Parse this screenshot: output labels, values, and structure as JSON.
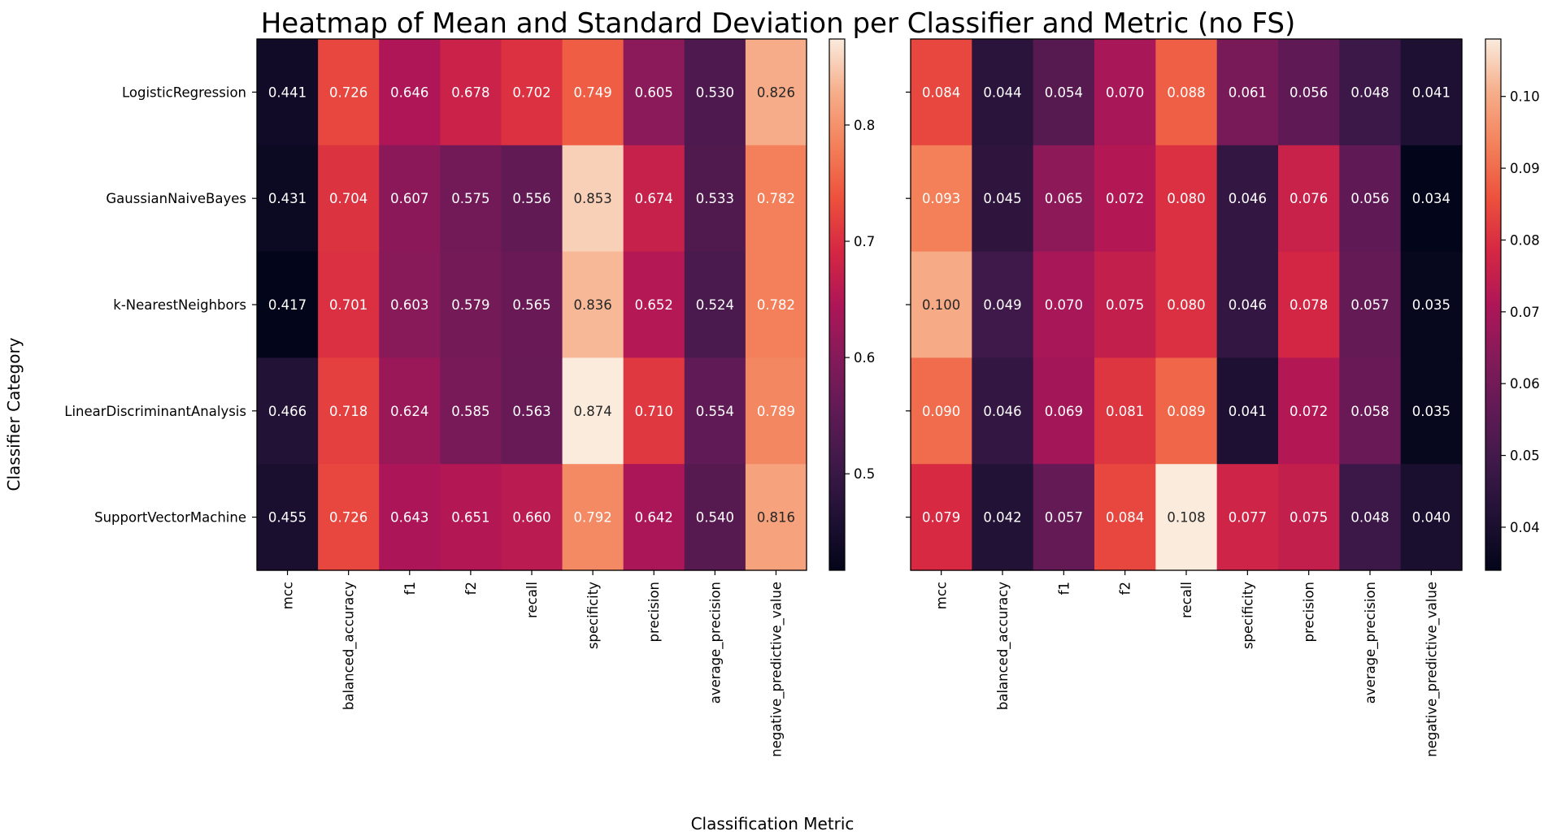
{
  "chart_data": {
    "type": "heatmap",
    "title": "Heatmap of Mean and Standard Deviation per Classifier and Metric (no FS)",
    "xlabel": "Classification Metric",
    "ylabel": "Classifier Category",
    "rows": [
      "LogisticRegression",
      "GaussianNaiveBayes",
      "k-NearestNeighbors",
      "LinearDiscriminantAnalysis",
      "SupportVectorMachine"
    ],
    "columns": [
      "mcc",
      "balanced_accuracy",
      "f1",
      "f2",
      "recall",
      "specificity",
      "precision",
      "average_precision",
      "negative_predictive_value"
    ],
    "colormap": "rocket",
    "panels": [
      {
        "name": "mean",
        "values": [
          [
            0.441,
            0.726,
            0.646,
            0.678,
            0.702,
            0.749,
            0.605,
            0.53,
            0.826
          ],
          [
            0.431,
            0.704,
            0.607,
            0.575,
            0.556,
            0.853,
            0.674,
            0.533,
            0.782
          ],
          [
            0.417,
            0.701,
            0.603,
            0.579,
            0.565,
            0.836,
            0.652,
            0.524,
            0.782
          ],
          [
            0.466,
            0.718,
            0.624,
            0.585,
            0.563,
            0.874,
            0.71,
            0.554,
            0.789
          ],
          [
            0.455,
            0.726,
            0.643,
            0.651,
            0.66,
            0.792,
            0.642,
            0.54,
            0.816
          ]
        ],
        "labels": [
          [
            "0.441",
            "0.726",
            "0.646",
            "0.678",
            "0.702",
            "0.749",
            "0.605",
            "0.530",
            "0.826"
          ],
          [
            "0.431",
            "0.704",
            "0.607",
            "0.575",
            "0.556",
            "0.853",
            "0.674",
            "0.533",
            "0.782"
          ],
          [
            "0.417",
            "0.701",
            "0.603",
            "0.579",
            "0.565",
            "0.836",
            "0.652",
            "0.524",
            "0.782"
          ],
          [
            "0.466",
            "0.718",
            "0.624",
            "0.585",
            "0.563",
            "0.874",
            "0.710",
            "0.554",
            "0.789"
          ],
          [
            "0.455",
            "0.726",
            "0.643",
            "0.651",
            "0.660",
            "0.792",
            "0.642",
            "0.540",
            "0.816"
          ]
        ],
        "vmin": 0.417,
        "vmax": 0.874,
        "colorbar_ticks": [
          0.5,
          0.6,
          0.7,
          0.8
        ],
        "colorbar_tick_labels": [
          "0.5",
          "0.6",
          "0.7",
          "0.8"
        ]
      },
      {
        "name": "std",
        "values": [
          [
            0.084,
            0.044,
            0.054,
            0.07,
            0.088,
            0.061,
            0.056,
            0.048,
            0.041
          ],
          [
            0.093,
            0.045,
            0.065,
            0.072,
            0.08,
            0.046,
            0.076,
            0.056,
            0.034
          ],
          [
            0.1,
            0.049,
            0.07,
            0.075,
            0.08,
            0.046,
            0.078,
            0.057,
            0.035
          ],
          [
            0.09,
            0.046,
            0.069,
            0.081,
            0.089,
            0.041,
            0.072,
            0.058,
            0.035
          ],
          [
            0.079,
            0.042,
            0.057,
            0.084,
            0.108,
            0.077,
            0.075,
            0.048,
            0.04
          ]
        ],
        "labels": [
          [
            "0.084",
            "0.044",
            "0.054",
            "0.070",
            "0.088",
            "0.061",
            "0.056",
            "0.048",
            "0.041"
          ],
          [
            "0.093",
            "0.045",
            "0.065",
            "0.072",
            "0.080",
            "0.046",
            "0.076",
            "0.056",
            "0.034"
          ],
          [
            "0.100",
            "0.049",
            "0.070",
            "0.075",
            "0.080",
            "0.046",
            "0.078",
            "0.057",
            "0.035"
          ],
          [
            "0.090",
            "0.046",
            "0.069",
            "0.081",
            "0.089",
            "0.041",
            "0.072",
            "0.058",
            "0.035"
          ],
          [
            "0.079",
            "0.042",
            "0.057",
            "0.084",
            "0.108",
            "0.077",
            "0.075",
            "0.048",
            "0.040"
          ]
        ],
        "vmin": 0.034,
        "vmax": 0.108,
        "colorbar_ticks": [
          0.04,
          0.05,
          0.06,
          0.07,
          0.08,
          0.09,
          0.1
        ],
        "colorbar_tick_labels": [
          "0.04",
          "0.05",
          "0.06",
          "0.07",
          "0.08",
          "0.09",
          "0.10"
        ]
      }
    ]
  }
}
